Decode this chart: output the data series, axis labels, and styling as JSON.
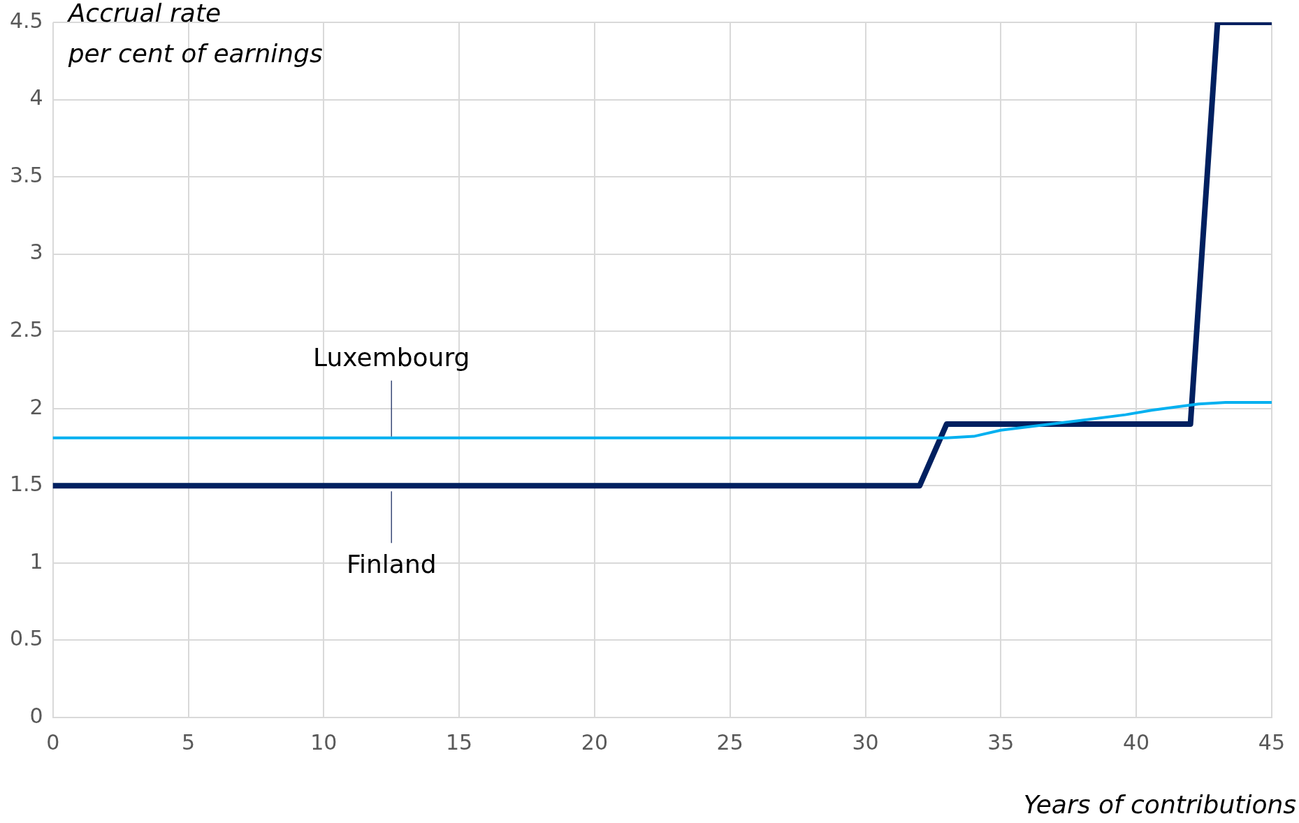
{
  "chart_data": {
    "type": "line",
    "xlabel": "Years of contributions",
    "ylabel": "Accrual rate\nper cent of earnings",
    "xlim": [
      0,
      45
    ],
    "xticks": [
      0,
      5,
      10,
      15,
      20,
      25,
      30,
      35,
      40,
      45
    ],
    "ylim": [
      0,
      4.5
    ],
    "yticks": [
      0,
      0.5,
      1,
      1.5,
      2,
      2.5,
      3,
      3.5,
      4,
      4.5
    ],
    "grid": true,
    "legend": false,
    "marker": "none",
    "line_style": "solid",
    "series": [
      {
        "name": "Luxembourg",
        "color": "#00b0f0",
        "x": [
          0,
          33,
          34,
          35,
          37.8,
          39.6,
          40.6,
          42.3,
          43.3,
          45
        ],
        "values": [
          1.81,
          1.81,
          1.82,
          1.86,
          1.92,
          1.96,
          1.99,
          2.03,
          2.04,
          2.04
        ]
      },
      {
        "name": "Finland",
        "color": "#002060",
        "x": [
          0,
          32,
          33,
          42,
          43,
          45
        ],
        "values": [
          1.5,
          1.5,
          1.9,
          1.9,
          4.5,
          4.5
        ]
      }
    ]
  }
}
